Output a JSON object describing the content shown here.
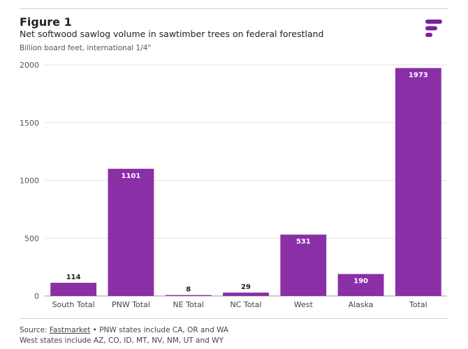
{
  "header": {
    "figure_label": "Figure 1",
    "title": "Net softwood sawlog volume in sawtimber trees on federal forestland",
    "subtitle": "Billion board feet, international 1/4\""
  },
  "logo": {
    "icon": "fastmarkets-logo-icon",
    "color": "#7b1fa2"
  },
  "footer": {
    "source_prefix": "Source:",
    "source_link": "Fastmarket",
    "source_rest": "• PNW states include CA, OR and WA",
    "note": "West states include AZ, CO, ID, MT, NV, NM, UT and WY"
  },
  "chart_data": {
    "type": "bar",
    "title": "",
    "xlabel": "",
    "ylabel": "",
    "categories": [
      "South Total",
      "PNW Total",
      "NE Total",
      "NC Total",
      "West",
      "Alaska",
      "Total"
    ],
    "values": [
      114,
      1101,
      8,
      29,
      531,
      190,
      1973
    ],
    "ylim": [
      0,
      2000
    ],
    "yticks": [
      0,
      500,
      1000,
      1500,
      2000
    ],
    "grid": true,
    "bar_color": "#8a2fa6",
    "label_color_inside": "#ffffff",
    "label_color_outside": "#222222"
  }
}
